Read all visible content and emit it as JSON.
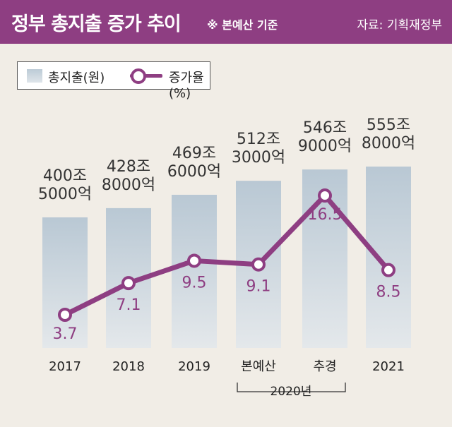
{
  "header": {
    "title": "정부 총지출 증가 추이",
    "note": "※ 본예산 기준",
    "source": "자료: 기획재정부"
  },
  "legend": {
    "bar_label": "총지출(원)",
    "line_label": "증가율(%)"
  },
  "colors": {
    "accent": "#8e3e82",
    "bar_top": "#b9c8d4",
    "bar_bottom": "#e4e8eb",
    "background": "#f1ede6"
  },
  "chart_data": {
    "type": "bar",
    "categories": [
      "2017",
      "2018",
      "2019",
      "본예산",
      "추경",
      "2021"
    ],
    "group_label": "2020년",
    "bar_labels": [
      [
        "400조",
        "5000억"
      ],
      [
        "428조",
        "8000억"
      ],
      [
        "469조",
        "6000억"
      ],
      [
        "512조",
        "3000억"
      ],
      [
        "546조",
        "9000억"
      ],
      [
        "555조",
        "8000억"
      ]
    ],
    "bar_values": [
      400.5,
      428.8,
      469.6,
      512.3,
      546.9,
      555.8
    ],
    "line_values": [
      3.7,
      7.1,
      9.5,
      9.1,
      16.5,
      8.5
    ],
    "line_labels": [
      "3.7",
      "7.1",
      "9.5",
      "9.1",
      "16.5",
      "8.5"
    ]
  }
}
